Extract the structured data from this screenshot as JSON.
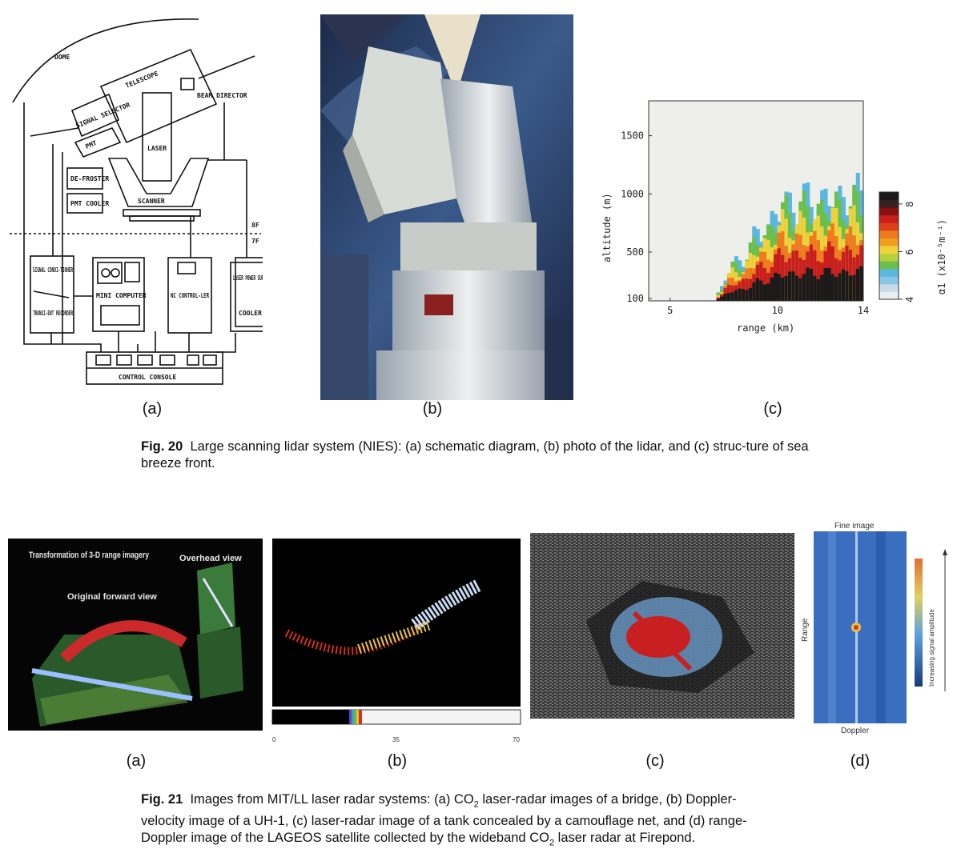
{
  "fig20": {
    "diagram": {
      "labels": {
        "dome": "DOME",
        "telescope": "TELESCOPE",
        "beam_director": "BEAM DIRECTOR",
        "signal_selector": "SIGNAL SELECTOR",
        "pmt": "PMT",
        "laser": "LASER",
        "defroster": "DE-FROSTER",
        "pmt_cooler": "PMT COOLER",
        "scanner": "SCANNER",
        "floor_8f": "8F",
        "floor_7f": "7F",
        "signal_conditioner": "SIGNAL CONDI-TIONER",
        "transient_recorder": "TRANSI-ENT RECORDER",
        "mini_computer": "MINI COMPUTER",
        "nc_controller": "NC CONTROL-LER",
        "laser_power_supply": "LASER POWER SUPPLY",
        "cooler": "COOLER",
        "control_console": "CONTROL CONSOLE"
      }
    },
    "panel_labels": [
      "(a)",
      "(b)",
      "(c)"
    ],
    "chart_data": {
      "type": "heatmap",
      "xlabel": "range (km)",
      "ylabel": "altitude (m)",
      "x_ticks": [
        "5",
        "10",
        "14"
      ],
      "y_ticks": [
        "100",
        "500",
        "1000",
        "1500"
      ],
      "xlim": [
        4,
        14
      ],
      "ylim": [
        80,
        1800
      ],
      "colorbar": {
        "label": "α1 (x10⁻⁵m⁻¹)",
        "ticks": [
          "4",
          "6",
          "8"
        ],
        "range": [
          4,
          8.5
        ]
      }
    },
    "caption_label": "Fig. 20",
    "caption_text": "Large scanning lidar system (NIES): (a) schematic diagram, (b) photo of the lidar, and (c) struc-ture of sea breeze front."
  },
  "fig21": {
    "panel_a": {
      "title": "Transformation of 3-D range imagery",
      "overhead": "Overhead view",
      "forward": "Original forward view"
    },
    "panel_b": {
      "scale_ticks": [
        "0",
        "35",
        "70"
      ]
    },
    "panel_d": {
      "top": "Fine image",
      "left": "Range",
      "bottom": "Doppler",
      "colorbar_label": "Increasing signal amplitude"
    },
    "panel_labels": [
      "(a)",
      "(b)",
      "(c)",
      "(d)"
    ],
    "caption_label": "Fig. 21",
    "caption_line1": "Images from MIT/LL laser radar systems: (a) CO",
    "caption_sub": "2",
    "caption_line1b": " laser-radar images of a bridge, (b) Doppler-",
    "caption_line2": "velocity image of a UH-1, (c) laser-radar image of a tank concealed by a camouflage net, and (d) range-",
    "caption_line3a": "Doppler image of the LAGEOS satellite collected by the wideband CO",
    "caption_line3b": " laser radar at Firepond."
  },
  "colors": {
    "heat_black": "#1a1a1a",
    "heat_red": "#c81e1e",
    "heat_orange": "#f07a1e",
    "heat_yellow": "#f0d23c",
    "heat_green": "#6cc04a",
    "heat_cyan": "#5ab8e0",
    "doppler_blue": "#3a6fc0"
  }
}
